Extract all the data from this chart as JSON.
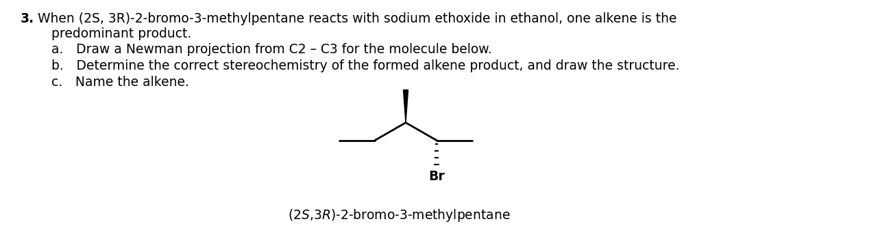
{
  "bg_color": "#ffffff",
  "text_color": "#000000",
  "line1_num": "3.",
  "line1_text": "When (2S, 3R)-2-bromo-3-methylpentane reacts with sodium ethoxide in ethanol, one alkene is the",
  "line2_text": "predominant product.",
  "item_a": "a. Draw a Newman projection from C2 – C3 for the molecule below.",
  "item_b": "b. Determine the correct stereochemistry of the formed alkene product, and draw the structure.",
  "item_c": "c. Name the alkene.",
  "mol_label": "(2S,3R)-2-bromo-3-methylpentane",
  "font_size_text": 13.5,
  "font_size_label": 13.5,
  "structure_color": "#000000"
}
